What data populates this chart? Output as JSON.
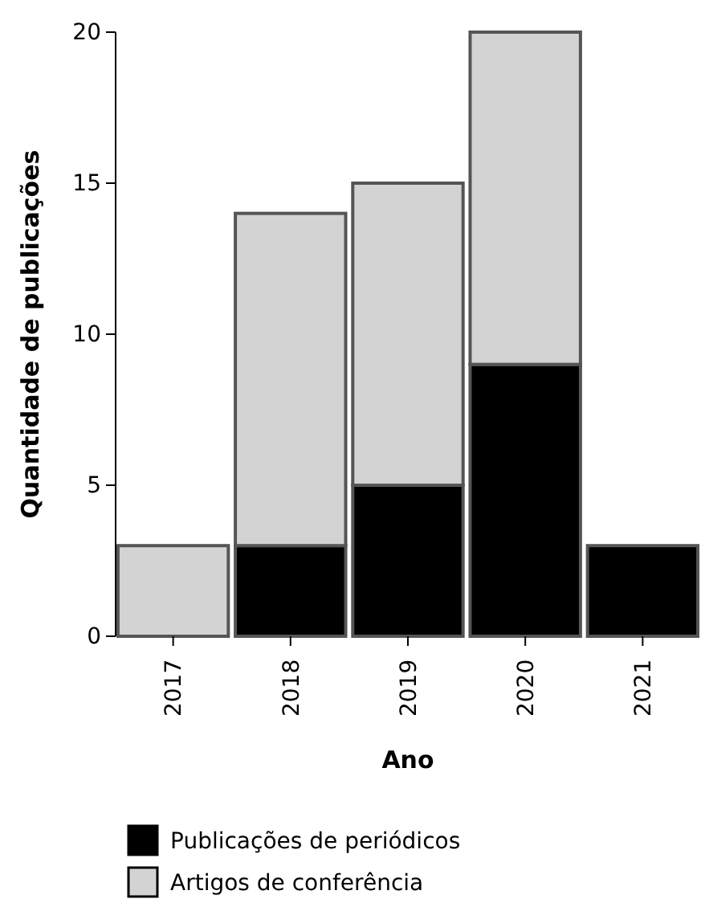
{
  "chart_data": {
    "type": "bar",
    "xlabel": "Ano",
    "ylabel": "Quantidade de publicações",
    "categories": [
      "2017",
      "2018",
      "2019",
      "2020",
      "2021"
    ],
    "series": [
      {
        "name": "Publicações de periódicos",
        "color": "#000000",
        "values": [
          0,
          3,
          5,
          9,
          3
        ]
      },
      {
        "name": "Artigos de conferência",
        "color": "#d3d3d3",
        "values": [
          3,
          11,
          10,
          11,
          0
        ]
      }
    ],
    "stacked": true,
    "ylim": [
      0,
      20
    ],
    "yticks": [
      0,
      5,
      10,
      15,
      20
    ],
    "legend": "bottom left"
  }
}
